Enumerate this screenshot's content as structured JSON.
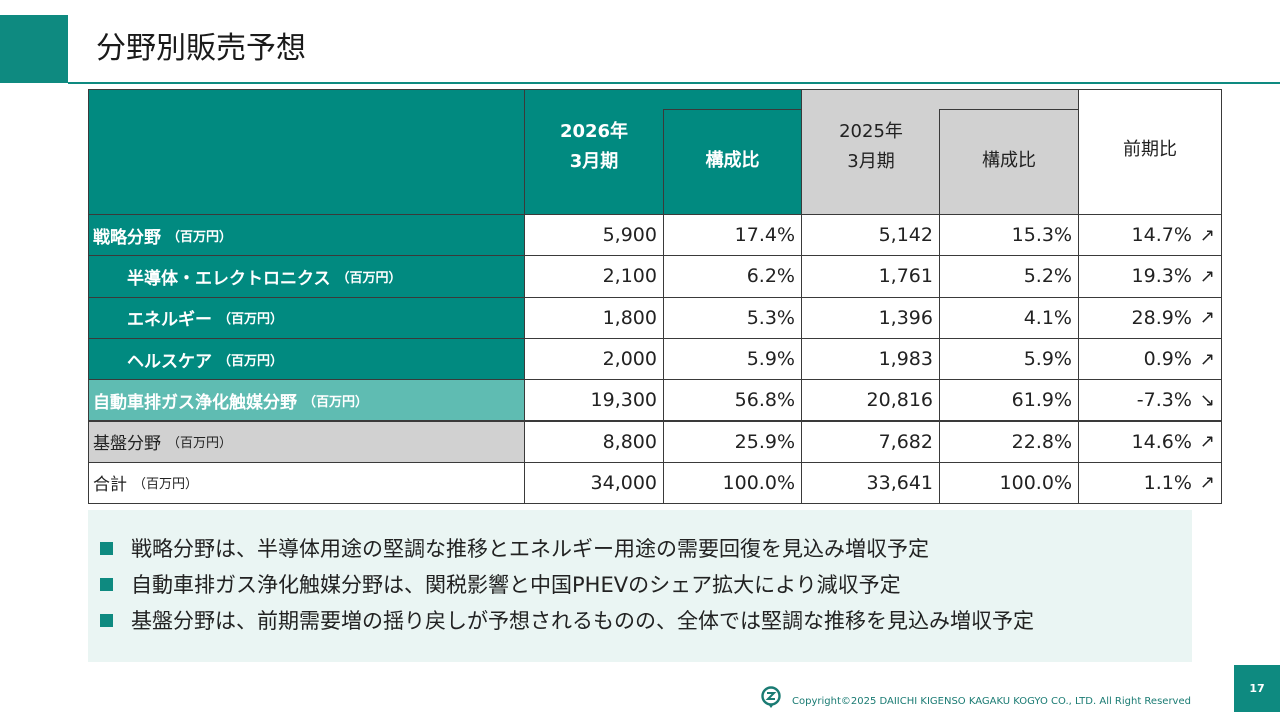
{
  "title": "分野別販売予想",
  "table": {
    "headers": {
      "fy2026": [
        "2026年",
        "3月期"
      ],
      "fy2026_ratio": "構成比",
      "fy2025": [
        "2025年",
        "3月期"
      ],
      "fy2025_ratio": "構成比",
      "yoy": "前期比"
    },
    "rows": [
      {
        "label": "戦略分野",
        "unit": "（百万円）",
        "v2026": "5,900",
        "r2026": "17.4%",
        "v2025": "5,142",
        "r2025": "15.3%",
        "yoy": "14.7%",
        "arrow": "↗"
      },
      {
        "label": "半導体・エレクトロニクス",
        "unit": "（百万円）",
        "v2026": "2,100",
        "r2026": "6.2%",
        "v2025": "1,761",
        "r2025": "5.2%",
        "yoy": "19.3%",
        "arrow": "↗"
      },
      {
        "label": "エネルギー",
        "unit": "（百万円）",
        "v2026": "1,800",
        "r2026": "5.3%",
        "v2025": "1,396",
        "r2025": "4.1%",
        "yoy": "28.9%",
        "arrow": "↗"
      },
      {
        "label": "ヘルスケア",
        "unit": "（百万円）",
        "v2026": "2,000",
        "r2026": "5.9%",
        "v2025": "1,983",
        "r2025": "5.9%",
        "yoy": "0.9%",
        "arrow": "↗"
      },
      {
        "label": "自動車排ガス浄化触媒分野",
        "unit": "（百万円）",
        "v2026": "19,300",
        "r2026": "56.8%",
        "v2025": "20,816",
        "r2025": "61.9%",
        "yoy": "-7.3%",
        "arrow": "↘"
      },
      {
        "label": "基盤分野",
        "unit": "（百万円）",
        "v2026": "8,800",
        "r2026": "25.9%",
        "v2025": "7,682",
        "r2025": "22.8%",
        "yoy": "14.6%",
        "arrow": "↗"
      },
      {
        "label": "合計",
        "unit": "（百万円）",
        "v2026": "34,000",
        "r2026": "100.0%",
        "v2025": "33,641",
        "r2025": "100.0%",
        "yoy": "1.1%",
        "arrow": "↗"
      }
    ]
  },
  "summary": [
    "戦略分野は、半導体用途の堅調な推移とエネルギー用途の需要回復を見込み増収予定",
    "自動車排ガス浄化触媒分野は、関税影響と中国PHEVのシェア拡大により減収予定",
    "基盤分野は、前期需要増の揺り戻しが予想されるものの、全体では堅調な推移を見込み増収予定"
  ],
  "footer": {
    "copyright": "Copyright©2025 DAIICHI KIGENSO KAGAKU KOGYO CO., LTD. All Right Reserved",
    "page": "17"
  },
  "colors": {
    "accent": "#0e8a80",
    "teal_cell": "#018a80",
    "light_teal_cell": "#5fbcb2",
    "gray_cell": "#d1d1d1"
  }
}
